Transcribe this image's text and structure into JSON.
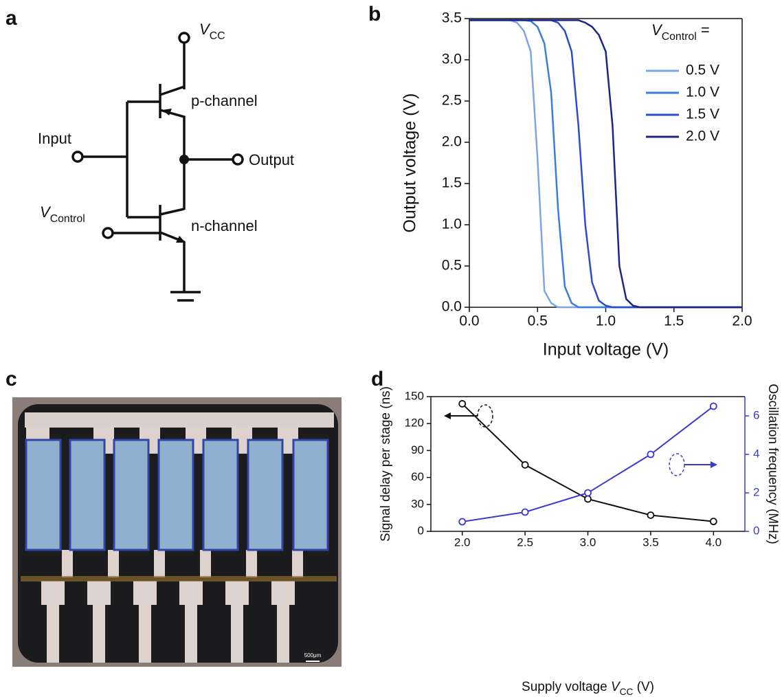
{
  "panel_labels": [
    "a",
    "b",
    "c",
    "d"
  ],
  "circuit": {
    "vcc": [
      {
        "text": "V",
        "style": "italic"
      },
      {
        "text": "CC",
        "style": "sub"
      }
    ],
    "p_channel": "p-channel",
    "input": "Input",
    "output": "Output",
    "vcontrol": [
      {
        "text": "V",
        "style": "italic"
      },
      {
        "text": "Control",
        "style": "sub"
      }
    ],
    "n_channel": "n-channel"
  },
  "photo": {
    "scale_label": "500μm"
  },
  "chart_data": [
    {
      "type": "line",
      "xlabel": "Input voltage (V)",
      "ylabel": "Output voltage (V)",
      "x": [
        0,
        0.1,
        0.2,
        0.3,
        0.35,
        0.4,
        0.45,
        0.5,
        0.55,
        0.6,
        0.65,
        0.7,
        0.75,
        0.8,
        0.85,
        0.9,
        0.95,
        1.0,
        1.05,
        1.1,
        1.15,
        1.2,
        1.25,
        1.3,
        1.5,
        2.0
      ],
      "xlim": [
        0,
        2
      ],
      "xticks": [
        {
          "value": 0,
          "label": "0.0"
        },
        {
          "value": 0.5,
          "label": "0.5"
        },
        {
          "value": 1,
          "label": "1.0"
        },
        {
          "value": 1.5,
          "label": "1.5"
        },
        {
          "value": 2,
          "label": "2.0"
        }
      ],
      "ylim": [
        0,
        3.5
      ],
      "yticks": [
        {
          "value": 0,
          "label": "0.0"
        },
        {
          "value": 0.5,
          "label": "0.5"
        },
        {
          "value": 1,
          "label": "1.0"
        },
        {
          "value": 1.5,
          "label": "1.5"
        },
        {
          "value": 2,
          "label": "2.0"
        },
        {
          "value": 2.5,
          "label": "2.5"
        },
        {
          "value": 3,
          "label": "3.0"
        },
        {
          "value": 3.5,
          "label": "3.5"
        }
      ],
      "legend": "upper right",
      "legend_title": [
        {
          "text": "V",
          "style": "italic"
        },
        {
          "text": "Control",
          "style": "sub"
        },
        {
          "text": " ="
        }
      ],
      "series": [
        {
          "name": "0.5 V",
          "color": "#7aa6e8",
          "values": [
            3.48,
            3.48,
            3.48,
            3.48,
            3.45,
            3.35,
            3.1,
            1.8,
            0.2,
            0.05,
            0,
            0,
            0,
            0,
            0,
            0,
            0,
            0,
            0,
            0,
            0,
            0,
            0,
            0,
            0,
            0
          ]
        },
        {
          "name": "1.0 V",
          "color": "#3b7ddd",
          "values": [
            3.48,
            3.48,
            3.48,
            3.48,
            3.48,
            3.48,
            3.47,
            3.4,
            3.2,
            2.6,
            1.2,
            0.25,
            0.05,
            0,
            0,
            0,
            0,
            0,
            0,
            0,
            0,
            0,
            0,
            0,
            0,
            0
          ]
        },
        {
          "name": "1.5 V",
          "color": "#2b4ccc",
          "values": [
            3.48,
            3.48,
            3.48,
            3.48,
            3.48,
            3.48,
            3.48,
            3.48,
            3.48,
            3.48,
            3.45,
            3.35,
            3.1,
            2.2,
            1.0,
            0.3,
            0.08,
            0.02,
            0,
            0,
            0,
            0,
            0,
            0,
            0,
            0
          ]
        },
        {
          "name": "2.0 V",
          "color": "#1b2486",
          "values": [
            3.48,
            3.48,
            3.48,
            3.48,
            3.48,
            3.48,
            3.48,
            3.48,
            3.48,
            3.48,
            3.48,
            3.48,
            3.48,
            3.48,
            3.45,
            3.4,
            3.3,
            3.1,
            2.2,
            0.5,
            0.1,
            0.02,
            0,
            0,
            0,
            0
          ]
        }
      ]
    },
    {
      "type": "line",
      "markers": true,
      "xlabel": [
        {
          "text": "Supply voltage "
        },
        {
          "text": "V",
          "style": "italic"
        },
        {
          "text": "CC",
          "style": "sub"
        },
        {
          "text": " (V)"
        }
      ],
      "ylabel": "Signal delay per stage (ns)",
      "y2label": "Oscillation frequency (MHz)",
      "x": [
        2.0,
        2.5,
        3.0,
        3.5,
        4.0
      ],
      "xlim": [
        1.75,
        4.25
      ],
      "xticks": [
        {
          "value": 2,
          "label": "2.0"
        },
        {
          "value": 2.5,
          "label": "2.5"
        },
        {
          "value": 3,
          "label": "3.0"
        },
        {
          "value": 3.5,
          "label": "3.5"
        },
        {
          "value": 4,
          "label": "4.0"
        }
      ],
      "ylim": [
        0,
        150
      ],
      "yticks": [
        0,
        30,
        60,
        90,
        120,
        150
      ],
      "y2lim": [
        0,
        7
      ],
      "y2ticks": [
        0,
        2,
        4,
        6
      ],
      "series": [
        {
          "color": "#111111",
          "values": [
            142,
            74,
            36,
            18,
            11
          ]
        },
        {
          "color": "#3a3ad0",
          "axis": "y2",
          "values": [
            0.5,
            1.0,
            2.0,
            4.0,
            6.5
          ]
        }
      ]
    }
  ]
}
